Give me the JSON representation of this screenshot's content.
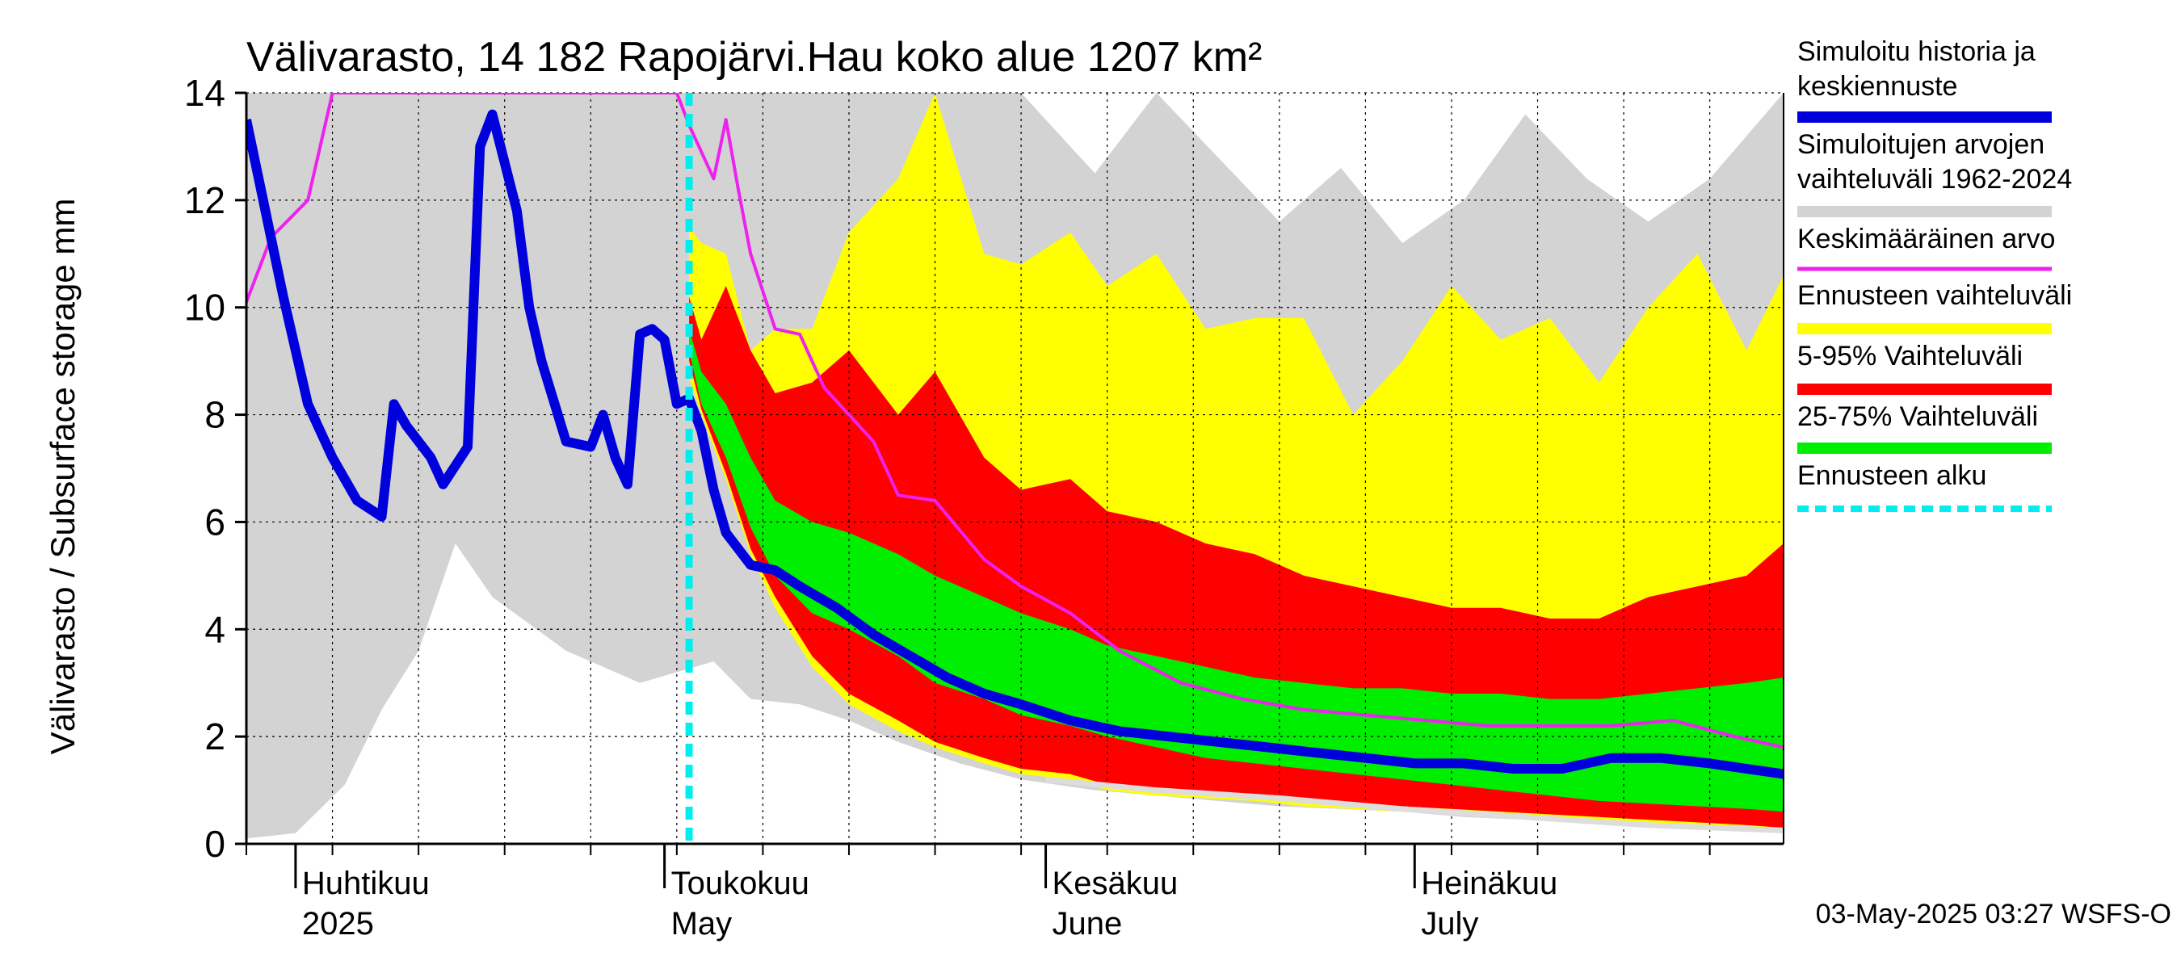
{
  "chart_data": {
    "type": "area",
    "title": "Välivarasto, 14 182 Rapojärvi.Hau koko alue 1207 km²",
    "ylabel": "Välivarasto / Subsurface storage  mm",
    "ylim": [
      0,
      14
    ],
    "yticks": [
      0,
      2,
      4,
      6,
      8,
      10,
      12,
      14
    ],
    "x_start": "2025-03-28",
    "x_end": "2025-07-31",
    "month_labels": [
      {
        "date": "2025-04-01",
        "line1": "Huhtikuu",
        "line2": "2025"
      },
      {
        "date": "2025-05-01",
        "line1": "Toukokuu",
        "line2": "May"
      },
      {
        "date": "2025-06-01",
        "line1": "Kesäkuu",
        "line2": "June"
      },
      {
        "date": "2025-07-01",
        "line1": "Heinäkuu",
        "line2": "July"
      }
    ],
    "forecast_start": "2025-05-03",
    "grid": true,
    "legend_position": "right",
    "legend": [
      {
        "label": "Simuloitu historia ja keskiennuste",
        "line1": "Simuloitu historia ja",
        "line2": "keskiennuste",
        "color": "#0000dd",
        "style": "thick"
      },
      {
        "label": "Simuloitujen arvojen vaihteluväli 1962-2024",
        "line1": "Simuloitujen arvojen",
        "line2": "vaihteluväli 1962-2024",
        "color": "#d3d3d3",
        "style": "thick"
      },
      {
        "label": "Keskimääräinen arvo",
        "line1": "Keskimääräinen arvo",
        "line2": "",
        "color": "#ee22ee",
        "style": "thin"
      },
      {
        "label": "Ennusteen vaihteluväli",
        "line1": "Ennusteen vaihteluväli",
        "line2": "",
        "color": "#ffff00",
        "style": "thick"
      },
      {
        "label": "5-95% Vaihteluväli",
        "line1": "5-95% Vaihteluväli",
        "line2": "",
        "color": "#ff0000",
        "style": "thick"
      },
      {
        "label": "25-75% Vaihteluväli",
        "line1": "25-75% Vaihteluväli",
        "line2": "",
        "color": "#00ee00",
        "style": "thick"
      },
      {
        "label": "Ennusteen alku",
        "line1": "Ennusteen alku",
        "line2": "",
        "color": "#00eeee",
        "style": "dashed"
      }
    ],
    "series": {
      "history_range": {
        "dates": [
          "2025-03-28",
          "2025-04-01",
          "2025-04-05",
          "2025-04-08",
          "2025-04-11",
          "2025-04-14",
          "2025-04-17",
          "2025-04-20",
          "2025-04-23",
          "2025-04-26",
          "2025-04-29",
          "2025-05-02",
          "2025-05-05",
          "2025-05-08",
          "2025-05-12",
          "2025-05-16",
          "2025-05-20",
          "2025-05-25",
          "2025-05-30",
          "2025-06-05",
          "2025-06-10",
          "2025-06-15",
          "2025-06-20",
          "2025-06-25",
          "2025-06-30",
          "2025-07-05",
          "2025-07-10",
          "2025-07-15",
          "2025-07-20",
          "2025-07-25",
          "2025-07-31"
        ],
        "low": [
          0.1,
          0.2,
          1.1,
          2.5,
          3.6,
          5.6,
          4.6,
          4.1,
          3.6,
          3.3,
          3.0,
          3.2,
          3.4,
          2.7,
          2.6,
          2.3,
          1.9,
          1.5,
          1.2,
          1.0,
          0.9,
          0.8,
          0.7,
          0.65,
          0.6,
          0.5,
          0.45,
          0.4,
          0.35,
          0.3,
          0.25
        ],
        "high": [
          14,
          14,
          14,
          14,
          14,
          14,
          14,
          14,
          14,
          14,
          14,
          14,
          14,
          14,
          14,
          14,
          14,
          14,
          14,
          12.5,
          14,
          12.8,
          11.6,
          12.6,
          11.2,
          12.0,
          13.6,
          12.4,
          11.6,
          12.4,
          14
        ]
      },
      "forecast_total": {
        "dates": [
          "2025-05-03",
          "2025-05-04",
          "2025-05-06",
          "2025-05-08",
          "2025-05-10",
          "2025-05-13",
          "2025-05-16",
          "2025-05-20",
          "2025-05-23",
          "2025-05-27",
          "2025-05-30",
          "2025-06-03",
          "2025-06-06",
          "2025-06-10",
          "2025-06-14",
          "2025-06-18",
          "2025-06-22",
          "2025-06-26",
          "2025-06-30",
          "2025-07-04",
          "2025-07-08",
          "2025-07-12",
          "2025-07-16",
          "2025-07-20",
          "2025-07-24",
          "2025-07-28",
          "2025-07-31"
        ],
        "low": [
          8.7,
          8.0,
          6.8,
          5.4,
          4.4,
          3.3,
          2.6,
          2.1,
          1.8,
          1.5,
          1.3,
          1.2,
          1.0,
          0.9,
          0.85,
          0.8,
          0.7,
          0.65,
          0.6,
          0.55,
          0.5,
          0.45,
          0.4,
          0.35,
          0.3,
          0.3,
          0.25
        ],
        "high": [
          11.5,
          11.2,
          11.0,
          9.2,
          9.6,
          9.6,
          11.4,
          12.4,
          14.0,
          11.0,
          10.8,
          11.4,
          10.4,
          11.0,
          9.6,
          9.8,
          9.8,
          8.0,
          9.0,
          10.4,
          9.4,
          9.8,
          8.6,
          10.0,
          11.0,
          9.2,
          10.6
        ]
      },
      "p5_95": {
        "dates": [
          "2025-05-03",
          "2025-05-04",
          "2025-05-06",
          "2025-05-08",
          "2025-05-10",
          "2025-05-13",
          "2025-05-16",
          "2025-05-20",
          "2025-05-23",
          "2025-05-27",
          "2025-05-30",
          "2025-06-03",
          "2025-06-06",
          "2025-06-10",
          "2025-06-14",
          "2025-06-18",
          "2025-06-22",
          "2025-06-26",
          "2025-06-30",
          "2025-07-04",
          "2025-07-08",
          "2025-07-12",
          "2025-07-16",
          "2025-07-20",
          "2025-07-24",
          "2025-07-28",
          "2025-07-31"
        ],
        "low": [
          9.0,
          8.1,
          6.9,
          5.5,
          4.6,
          3.5,
          2.8,
          2.3,
          1.9,
          1.6,
          1.4,
          1.3,
          1.1,
          1.0,
          0.9,
          0.9,
          0.8,
          0.75,
          0.7,
          0.65,
          0.6,
          0.55,
          0.5,
          0.45,
          0.4,
          0.35,
          0.3
        ],
        "high": [
          10.2,
          9.4,
          10.4,
          9.2,
          8.4,
          8.6,
          9.2,
          8.0,
          8.8,
          7.2,
          6.6,
          6.8,
          6.2,
          6.0,
          5.6,
          5.4,
          5.0,
          4.8,
          4.6,
          4.4,
          4.4,
          4.2,
          4.2,
          4.6,
          4.8,
          5.0,
          5.6
        ]
      },
      "p25_75": {
        "dates": [
          "2025-05-03",
          "2025-05-04",
          "2025-05-06",
          "2025-05-08",
          "2025-05-10",
          "2025-05-13",
          "2025-05-16",
          "2025-05-20",
          "2025-05-23",
          "2025-05-27",
          "2025-05-30",
          "2025-06-03",
          "2025-06-06",
          "2025-06-10",
          "2025-06-14",
          "2025-06-18",
          "2025-06-22",
          "2025-06-26",
          "2025-06-30",
          "2025-07-04",
          "2025-07-08",
          "2025-07-12",
          "2025-07-16",
          "2025-07-20",
          "2025-07-24",
          "2025-07-28",
          "2025-07-31"
        ],
        "low": [
          9.2,
          8.2,
          7.2,
          5.9,
          5.0,
          4.3,
          4.0,
          3.5,
          3.0,
          2.7,
          2.4,
          2.2,
          2.0,
          1.8,
          1.6,
          1.5,
          1.4,
          1.3,
          1.2,
          1.1,
          1.0,
          0.9,
          0.8,
          0.75,
          0.7,
          0.65,
          0.6
        ],
        "high": [
          9.6,
          8.8,
          8.2,
          7.2,
          6.4,
          6.0,
          5.8,
          5.4,
          5.0,
          4.6,
          4.3,
          4.0,
          3.7,
          3.5,
          3.3,
          3.1,
          3.0,
          2.9,
          2.9,
          2.8,
          2.8,
          2.7,
          2.7,
          2.8,
          2.9,
          3.0,
          3.1
        ]
      },
      "mean": {
        "dates": [
          "2025-03-28",
          "2025-03-30",
          "2025-04-02",
          "2025-04-04",
          "2025-05-02",
          "2025-05-03",
          "2025-05-05",
          "2025-05-06",
          "2025-05-07",
          "2025-05-08",
          "2025-05-10",
          "2025-05-12",
          "2025-05-14",
          "2025-05-16",
          "2025-05-18",
          "2025-05-20",
          "2025-05-23",
          "2025-05-27",
          "2025-05-30",
          "2025-06-03",
          "2025-06-07",
          "2025-06-12",
          "2025-06-17",
          "2025-06-22",
          "2025-06-27",
          "2025-07-02",
          "2025-07-07",
          "2025-07-12",
          "2025-07-17",
          "2025-07-22",
          "2025-07-27",
          "2025-07-31"
        ],
        "values": [
          10.1,
          11.3,
          12.0,
          14.0,
          14.0,
          13.4,
          12.4,
          13.5,
          12.2,
          11.0,
          9.6,
          9.5,
          8.5,
          8.0,
          7.5,
          6.5,
          6.4,
          5.3,
          4.8,
          4.3,
          3.6,
          3.0,
          2.7,
          2.5,
          2.4,
          2.3,
          2.2,
          2.2,
          2.2,
          2.3,
          2.0,
          1.8
        ]
      },
      "median": {
        "dates": [
          "2025-03-28",
          "2025-03-31",
          "2025-04-02",
          "2025-04-04",
          "2025-04-06",
          "2025-04-08",
          "2025-04-09",
          "2025-04-10",
          "2025-04-12",
          "2025-04-13",
          "2025-04-15",
          "2025-04-16",
          "2025-04-17",
          "2025-04-19",
          "2025-04-20",
          "2025-04-21",
          "2025-04-23",
          "2025-04-25",
          "2025-04-26",
          "2025-04-27",
          "2025-04-28",
          "2025-04-29",
          "2025-04-30",
          "2025-05-01",
          "2025-05-02",
          "2025-05-03",
          "2025-05-04",
          "2025-05-05",
          "2025-05-06",
          "2025-05-08",
          "2025-05-10",
          "2025-05-12",
          "2025-05-15",
          "2025-05-18",
          "2025-05-21",
          "2025-05-24",
          "2025-05-27",
          "2025-05-30",
          "2025-06-03",
          "2025-06-07",
          "2025-06-11",
          "2025-06-15",
          "2025-06-19",
          "2025-06-23",
          "2025-06-27",
          "2025-07-01",
          "2025-07-05",
          "2025-07-09",
          "2025-07-13",
          "2025-07-17",
          "2025-07-21",
          "2025-07-25",
          "2025-07-31"
        ],
        "values": [
          13.5,
          10.2,
          8.2,
          7.2,
          6.4,
          6.1,
          8.2,
          7.8,
          7.2,
          6.7,
          7.4,
          13.0,
          13.6,
          11.8,
          10.0,
          9.0,
          7.5,
          7.4,
          8.0,
          7.2,
          6.7,
          9.5,
          9.6,
          9.4,
          8.2,
          8.3,
          7.7,
          6.6,
          5.8,
          5.2,
          5.1,
          4.8,
          4.4,
          3.9,
          3.5,
          3.1,
          2.8,
          2.6,
          2.3,
          2.1,
          2.0,
          1.9,
          1.8,
          1.7,
          1.6,
          1.5,
          1.5,
          1.4,
          1.4,
          1.6,
          1.6,
          1.5,
          1.3
        ]
      },
      "white_line": {
        "dates": [
          "2025-06-01",
          "2025-06-10",
          "2025-06-20",
          "2025-06-30",
          "2025-07-10",
          "2025-07-20",
          "2025-07-31"
        ],
        "values": [
          1.2,
          1.0,
          0.85,
          0.65,
          0.5,
          0.35,
          0.25
        ]
      }
    }
  },
  "footer": {
    "timestamp": "03-May-2025 03:27 WSFS-O"
  }
}
